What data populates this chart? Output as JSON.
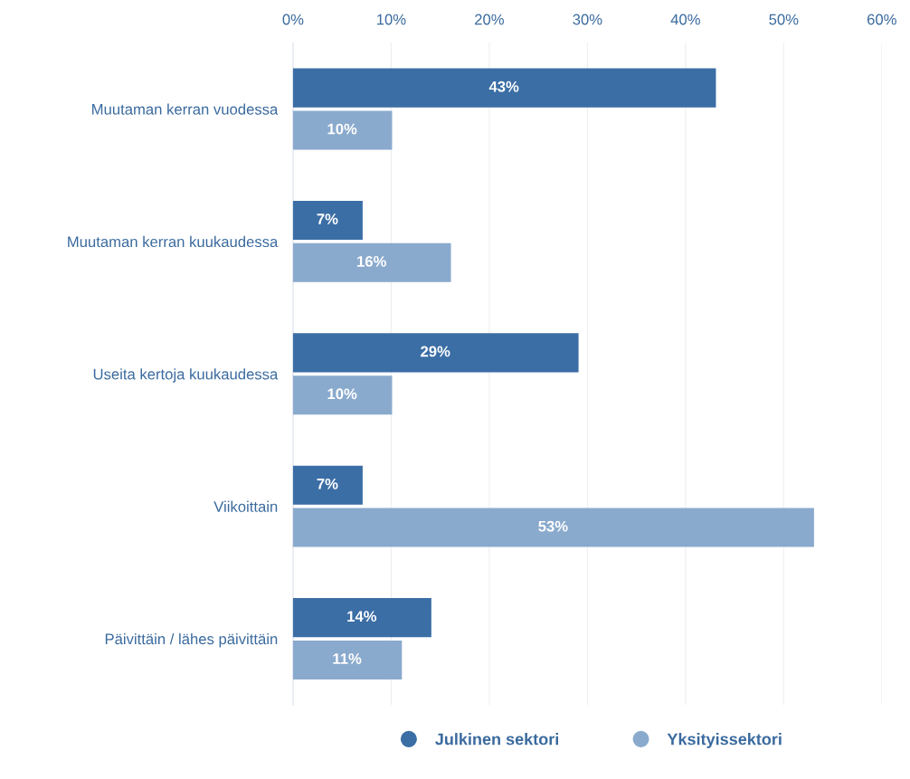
{
  "chart_data": {
    "type": "bar",
    "orientation": "horizontal",
    "categories": [
      "Muutaman kerran vuodessa",
      "Muutaman kerran kuukaudessa",
      "Useita kertoja kuukaudessa",
      "Viikoittain",
      "Päivittäin / lähes päivittäin"
    ],
    "series": [
      {
        "name": "Julkinen sektori",
        "color": "#3b6ea5",
        "values": [
          43,
          7,
          29,
          7,
          14
        ],
        "value_labels": [
          "43%",
          "7%",
          "29%",
          "7%",
          "14%"
        ]
      },
      {
        "name": "Yksityissektori",
        "color": "#8aaacd",
        "values": [
          10,
          16,
          10,
          53,
          11
        ],
        "value_labels": [
          "10%",
          "16%",
          "10%",
          "53%",
          "11%"
        ]
      }
    ],
    "xlim": [
      0,
      60
    ],
    "xticks": [
      {
        "value": 0,
        "label": "0%"
      },
      {
        "value": 10,
        "label": "10%"
      },
      {
        "value": 20,
        "label": "20%"
      },
      {
        "value": 30,
        "label": "30%"
      },
      {
        "value": 40,
        "label": "40%"
      },
      {
        "value": 50,
        "label": "50%"
      },
      {
        "value": 60,
        "label": "60%"
      }
    ],
    "grid": "x",
    "legend": "bottom",
    "marker": "circle"
  }
}
